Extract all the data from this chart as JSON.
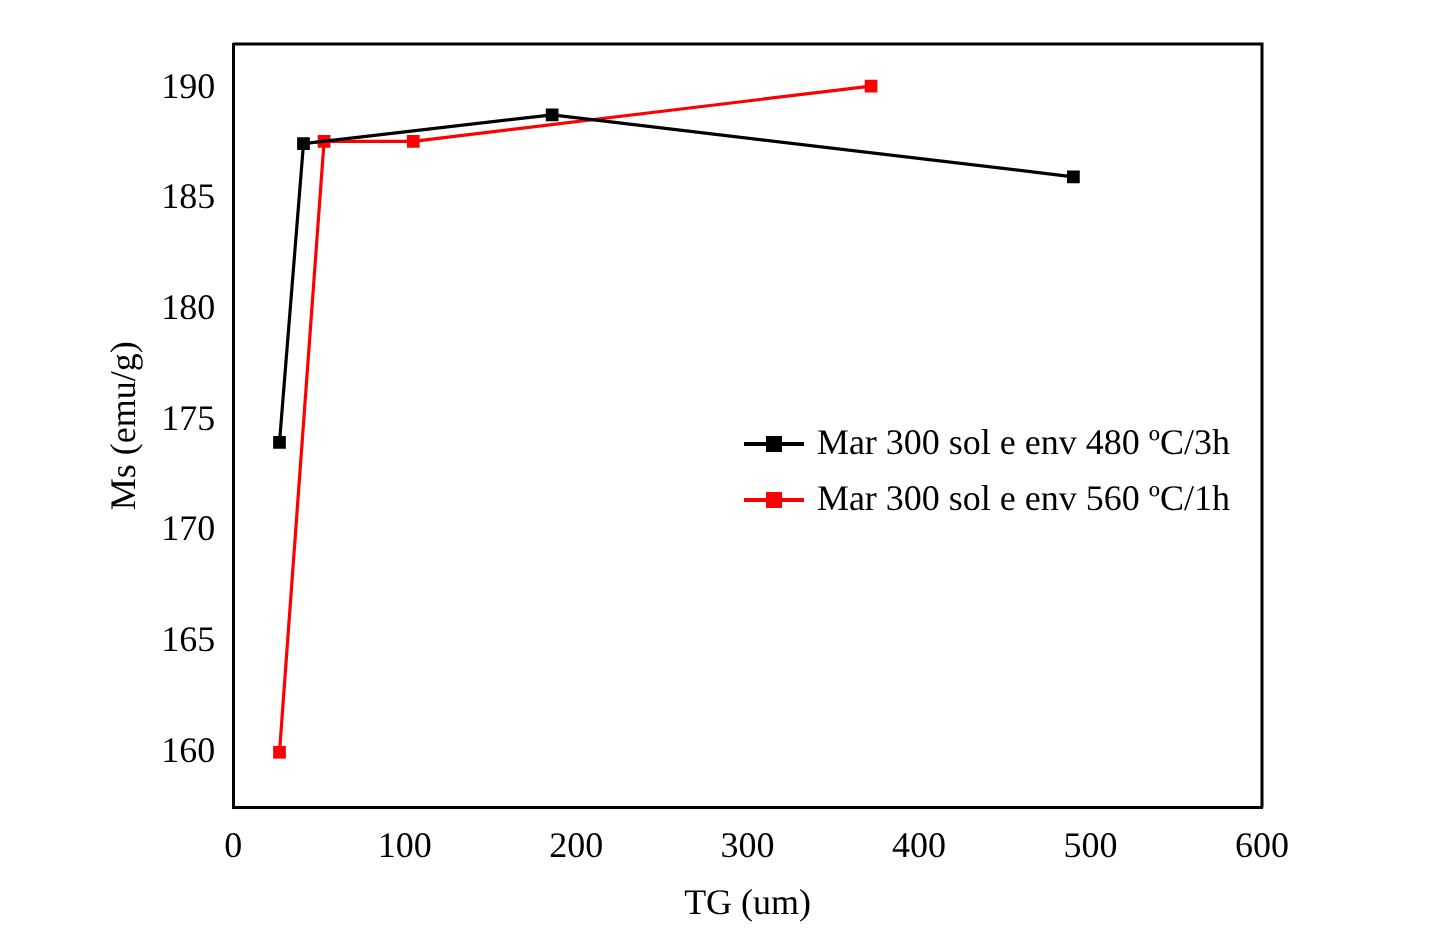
{
  "chart_data": {
    "type": "line",
    "xlabel": "TG (um)",
    "ylabel": "Ms (emu/g)",
    "xlim": [
      0,
      600
    ],
    "xticks": [
      0,
      100,
      200,
      300,
      400,
      500,
      600
    ],
    "ylim": [
      157.5,
      192
    ],
    "yticks": [
      160,
      165,
      170,
      175,
      180,
      185,
      190
    ],
    "marker": "square",
    "line_style": "solid",
    "legend": "right",
    "grid": false,
    "series": [
      {
        "name": "Mar 300 sol e env 480 ºC/3h",
        "color": "#000000",
        "x": [
          27,
          41,
          186,
          490
        ],
        "values": [
          174.0,
          187.5,
          188.8,
          186.0
        ]
      },
      {
        "name": "Mar 300 sol e env 560 ºC/1h",
        "color": "#ff0000",
        "x": [
          27,
          53,
          105,
          372
        ],
        "values": [
          160.0,
          187.6,
          187.6,
          190.1
        ]
      }
    ]
  }
}
